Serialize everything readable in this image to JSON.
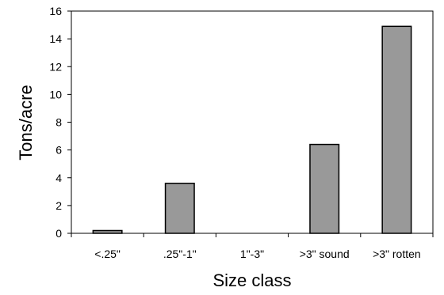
{
  "chart_data": {
    "type": "bar",
    "title": "",
    "xlabel": "Size class",
    "ylabel": "Tons/acre",
    "categories": [
      ".25\"",
      ".25\"-1\"",
      "1\"-3\"",
      ">3\" sound",
      ">3\" rotten"
    ],
    "category_labels": [
      "<.25\"",
      ".25\"-1\"",
      "1\"-3\"",
      ">3\" sound",
      ">3\" rotten"
    ],
    "values": [
      0.2,
      3.6,
      0,
      6.4,
      14.9
    ],
    "ylim": [
      0,
      16
    ],
    "yticks": [
      0,
      2,
      4,
      6,
      8,
      10,
      12,
      14,
      16
    ],
    "grid": false,
    "legend": "none",
    "bar_color": "#999999",
    "bar_stroke": "#000000"
  }
}
